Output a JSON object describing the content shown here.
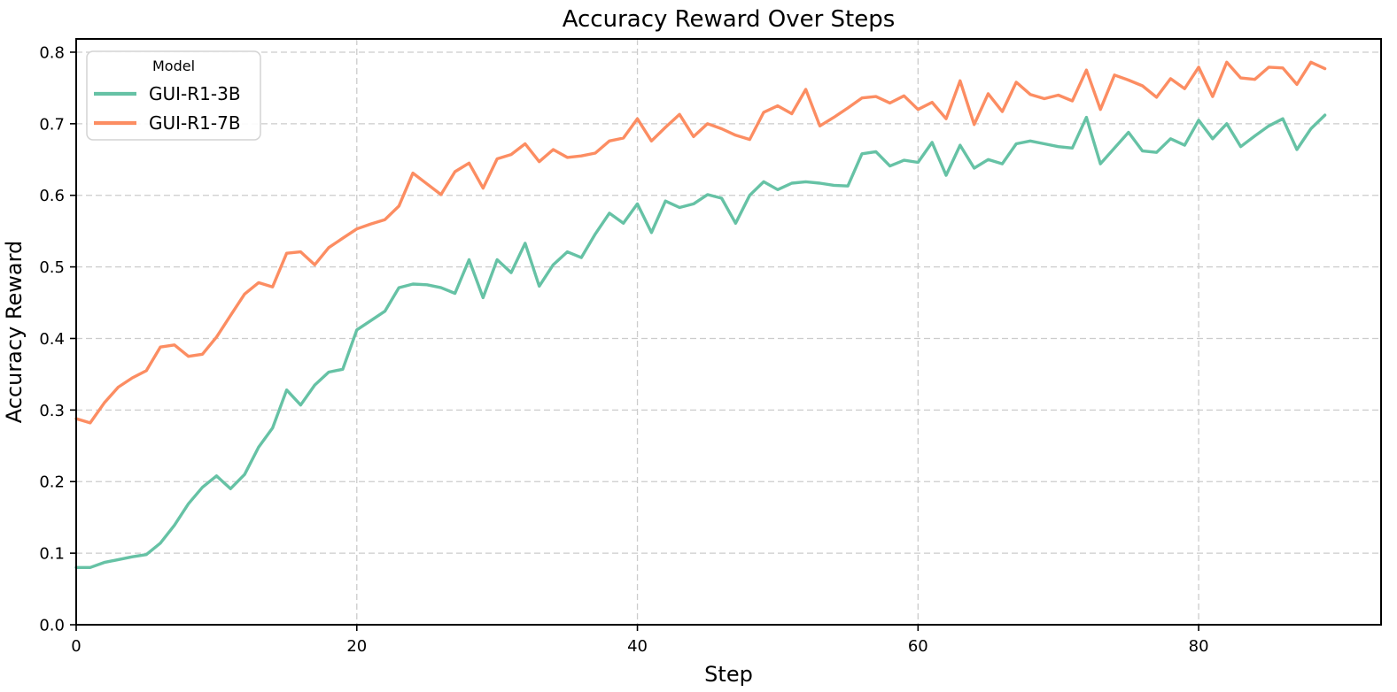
{
  "chart_data": {
    "type": "line",
    "title": "Accuracy Reward Over Steps",
    "xlabel": "Step",
    "ylabel": "Accuracy Reward",
    "legend_title": "Model",
    "legend_position": "upper left",
    "grid": true,
    "grid_style": "dashed",
    "grid_color": "#cccccc",
    "background_color": "#ffffff",
    "spine_color": "#000000",
    "xlim": [
      0,
      93
    ],
    "ylim": [
      0,
      0.8185
    ],
    "xticks": {
      "values": [
        0,
        20,
        40,
        60,
        80
      ],
      "labels": [
        "0",
        "20",
        "40",
        "60",
        "80"
      ]
    },
    "yticks": {
      "values": [
        0.0,
        0.1,
        0.2,
        0.3,
        0.4,
        0.5,
        0.6,
        0.7,
        0.8
      ],
      "labels": [
        "0.0",
        "0.1",
        "0.2",
        "0.3",
        "0.4",
        "0.5",
        "0.6",
        "0.7",
        "0.8"
      ]
    },
    "x": [
      0,
      1,
      2,
      3,
      4,
      5,
      6,
      7,
      8,
      9,
      10,
      11,
      12,
      13,
      14,
      15,
      16,
      17,
      18,
      19,
      20,
      21,
      22,
      23,
      24,
      25,
      26,
      27,
      28,
      29,
      30,
      31,
      32,
      33,
      34,
      35,
      36,
      37,
      38,
      39,
      40,
      41,
      42,
      43,
      44,
      45,
      46,
      47,
      48,
      49,
      50,
      51,
      52,
      53,
      54,
      55,
      56,
      57,
      58,
      59,
      60,
      61,
      62,
      63,
      64,
      65,
      66,
      67,
      68,
      69,
      70,
      71,
      72,
      73,
      74,
      75,
      76,
      77,
      78,
      79,
      80,
      81,
      82,
      83,
      84,
      85,
      86,
      87,
      88,
      89
    ],
    "series": [
      {
        "name": "GUI-R1-3B",
        "color": "#66c2a5",
        "values": [
          0.08,
          0.08,
          0.087,
          0.091,
          0.095,
          0.098,
          0.114,
          0.139,
          0.169,
          0.192,
          0.208,
          0.19,
          0.21,
          0.248,
          0.275,
          0.328,
          0.307,
          0.335,
          0.353,
          0.357,
          0.412,
          0.425,
          0.438,
          0.471,
          0.476,
          0.475,
          0.471,
          0.463,
          0.51,
          0.457,
          0.51,
          0.492,
          0.533,
          0.473,
          0.503,
          0.521,
          0.513,
          0.546,
          0.575,
          0.561,
          0.588,
          0.548,
          0.592,
          0.583,
          0.588,
          0.601,
          0.596,
          0.561,
          0.6,
          0.619,
          0.608,
          0.617,
          0.619,
          0.617,
          0.614,
          0.613,
          0.658,
          0.661,
          0.641,
          0.649,
          0.646,
          0.674,
          0.628,
          0.67,
          0.638,
          0.65,
          0.644,
          0.672,
          0.676,
          0.672,
          0.668,
          0.666,
          0.709,
          0.644,
          0.666,
          0.688,
          0.662,
          0.66,
          0.679,
          0.67,
          0.705,
          0.679,
          0.7,
          0.668,
          0.683,
          0.697,
          0.707,
          0.664,
          0.693,
          0.712
        ]
      },
      {
        "name": "GUI-R1-7B",
        "color": "#fc8d62",
        "values": [
          0.288,
          0.282,
          0.31,
          0.332,
          0.345,
          0.355,
          0.388,
          0.391,
          0.375,
          0.378,
          0.402,
          0.432,
          0.462,
          0.478,
          0.472,
          0.519,
          0.521,
          0.503,
          0.527,
          0.54,
          0.553,
          0.56,
          0.566,
          0.585,
          0.631,
          0.616,
          0.601,
          0.633,
          0.645,
          0.61,
          0.651,
          0.657,
          0.672,
          0.647,
          0.664,
          0.653,
          0.655,
          0.659,
          0.676,
          0.68,
          0.707,
          0.676,
          0.695,
          0.713,
          0.682,
          0.7,
          0.693,
          0.684,
          0.678,
          0.716,
          0.725,
          0.714,
          0.748,
          0.697,
          0.709,
          0.722,
          0.736,
          0.738,
          0.729,
          0.739,
          0.72,
          0.73,
          0.707,
          0.76,
          0.699,
          0.742,
          0.717,
          0.758,
          0.741,
          0.735,
          0.74,
          0.732,
          0.775,
          0.72,
          0.768,
          0.761,
          0.753,
          0.737,
          0.763,
          0.749,
          0.779,
          0.738,
          0.786,
          0.764,
          0.762,
          0.779,
          0.778,
          0.755,
          0.786,
          0.777
        ]
      }
    ]
  }
}
